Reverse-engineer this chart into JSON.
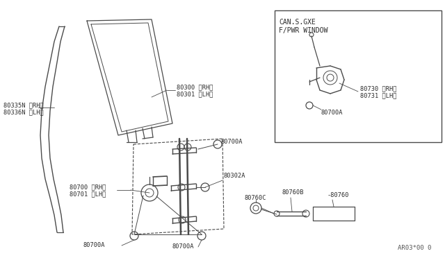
{
  "bg_color": "#ffffff",
  "line_color": "#4a4a4a",
  "text_color": "#2a2a2a",
  "title": "AR03*00 0",
  "box_label1": "CAN.S.GXE",
  "box_label2": "F/PWR WINDOW",
  "labels": {
    "80335N_RH": "80335N 〈RH〉",
    "80336N_LH": "80336N 〈LH〉",
    "80300_RH": "80300 〈RH〉",
    "80301_LH": "80301 〈LH〉",
    "80700_RH": "80700 〈RH〉",
    "80701_LH": "80701 〈LH〉",
    "80700A_top": "80700A",
    "80700A_btm_l": "80700A",
    "80700A_btm_m": "80700A",
    "80302A": "80302A",
    "80760C": "80760C",
    "80760B": "80760B",
    "80760": "-80760",
    "80730_RH": "80730 〈RH〉",
    "80731_LH": "80731 〈LH〉",
    "80700A_box": "80700A"
  }
}
